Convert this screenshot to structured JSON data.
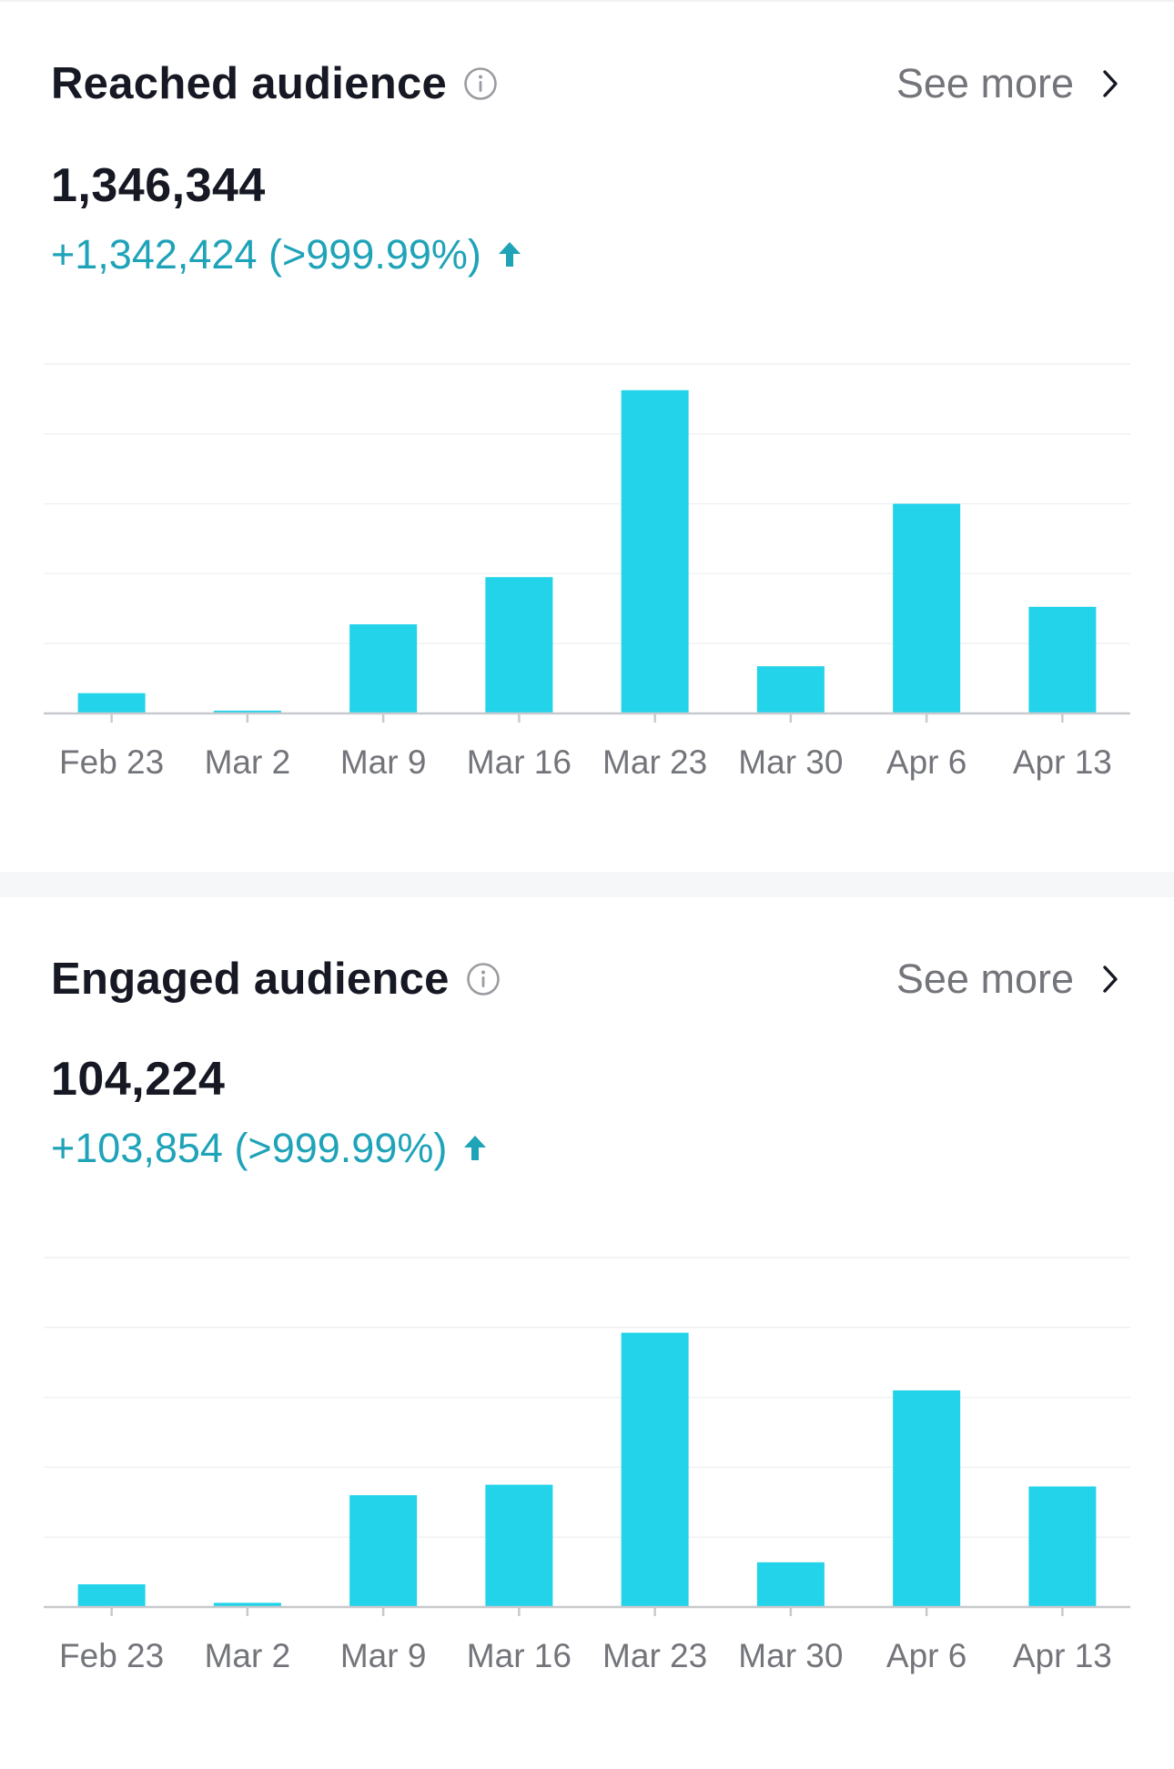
{
  "colors": {
    "bar": "#22d3ea",
    "positive": "#1fa3b8",
    "grid": "#f0f1f3",
    "axis": "#c8c9cc",
    "tick_label": "#73757b"
  },
  "icons": {
    "info": "info-circle-icon",
    "chevron": "chevron-right-icon",
    "trend": "arrow-up-icon"
  },
  "sections": [
    {
      "title": "Reached audience",
      "see_more": "See more",
      "value": "1,346,344",
      "change": "+1,342,424 (>999.99%)"
    },
    {
      "title": "Engaged audience",
      "see_more": "See more",
      "value": "104,224",
      "change": "+103,854 (>999.99%)"
    }
  ],
  "chart_data": [
    {
      "type": "bar",
      "categories": [
        "Feb 23",
        "Mar 2",
        "Mar 9",
        "Mar 16",
        "Mar 23",
        "Mar 30",
        "Apr 6",
        "Apr 13"
      ],
      "values": [
        5.8,
        0.8,
        25.5,
        39,
        92.5,
        13.5,
        60,
        30.5
      ],
      "ylim": [
        0,
        100
      ],
      "grid": true,
      "legend": "none",
      "y_tick_labels": false
    },
    {
      "type": "bar",
      "categories": [
        "Feb 23",
        "Mar 2",
        "Mar 9",
        "Mar 16",
        "Mar 23",
        "Mar 30",
        "Apr 6",
        "Apr 13"
      ],
      "values": [
        6.5,
        1.2,
        32,
        35,
        78.5,
        12.8,
        62,
        34.5
      ],
      "ylim": [
        0,
        100
      ],
      "grid": true,
      "legend": "none",
      "y_tick_labels": false
    }
  ]
}
